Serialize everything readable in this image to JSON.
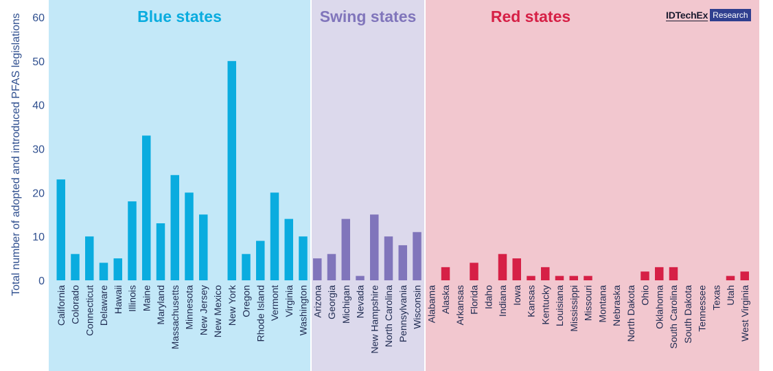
{
  "chart_data": {
    "type": "bar",
    "ylabel": "Total number of adopted and introduced PFAS legislations",
    "ylim": [
      0,
      60
    ],
    "yticks": [
      0,
      10,
      20,
      30,
      40,
      50,
      60
    ],
    "groups": [
      {
        "name": "Blue states",
        "background": "#c3e8f8",
        "bar_color": "#0aacdf",
        "label_color": "#0aacdf",
        "categories": [
          "California",
          "Colorado",
          "Connecticut",
          "Delaware",
          "Hawaii",
          "Illinois",
          "Maine",
          "Maryland",
          "Massachusetts",
          "Minnesota",
          "New Jersey",
          "New Mexico",
          "New York",
          "Oregon",
          "Rhode Island",
          "Vermont",
          "Virginia",
          "Washington"
        ],
        "values": [
          23,
          6,
          10,
          4,
          5,
          18,
          33,
          13,
          24,
          20,
          15,
          0,
          50,
          6,
          9,
          20,
          14,
          10
        ]
      },
      {
        "name": "Swing states",
        "background": "#dcd9ec",
        "bar_color": "#8075bb",
        "label_color": "#8075bb",
        "categories": [
          "Arizona",
          "Georgia",
          "Michigan",
          "Nevada",
          "New Hampshire",
          "North Carolina",
          "Pennsylvania",
          "Wisconsin"
        ],
        "values": [
          5,
          6,
          14,
          1,
          15,
          10,
          8,
          11
        ]
      },
      {
        "name": "Red states",
        "background": "#f2c7cf",
        "bar_color": "#d62046",
        "label_color": "#d62046",
        "categories": [
          "Alabama",
          "Alaska",
          "Arkansas",
          "Florida",
          "Idaho",
          "Indiana",
          "Iowa",
          "Kansas",
          "Kentucky",
          "Louisiana",
          "Mississippi",
          "Missouri",
          "Montana",
          "Nebraska",
          "North Dakota",
          "Ohio",
          "Oklahoma",
          "South Carolina",
          "South Dakota",
          "Tennessee",
          "Texas",
          "Utah",
          "West Virginia"
        ],
        "values": [
          0,
          3,
          0,
          4,
          0,
          6,
          5,
          1,
          3,
          1,
          1,
          1,
          0,
          0,
          0,
          2,
          3,
          3,
          0,
          0,
          0,
          1,
          2
        ]
      }
    ],
    "axis_color": "#2f4f8f",
    "grid": false
  },
  "brand": {
    "name": "IDTechEx",
    "tag": "Research"
  }
}
